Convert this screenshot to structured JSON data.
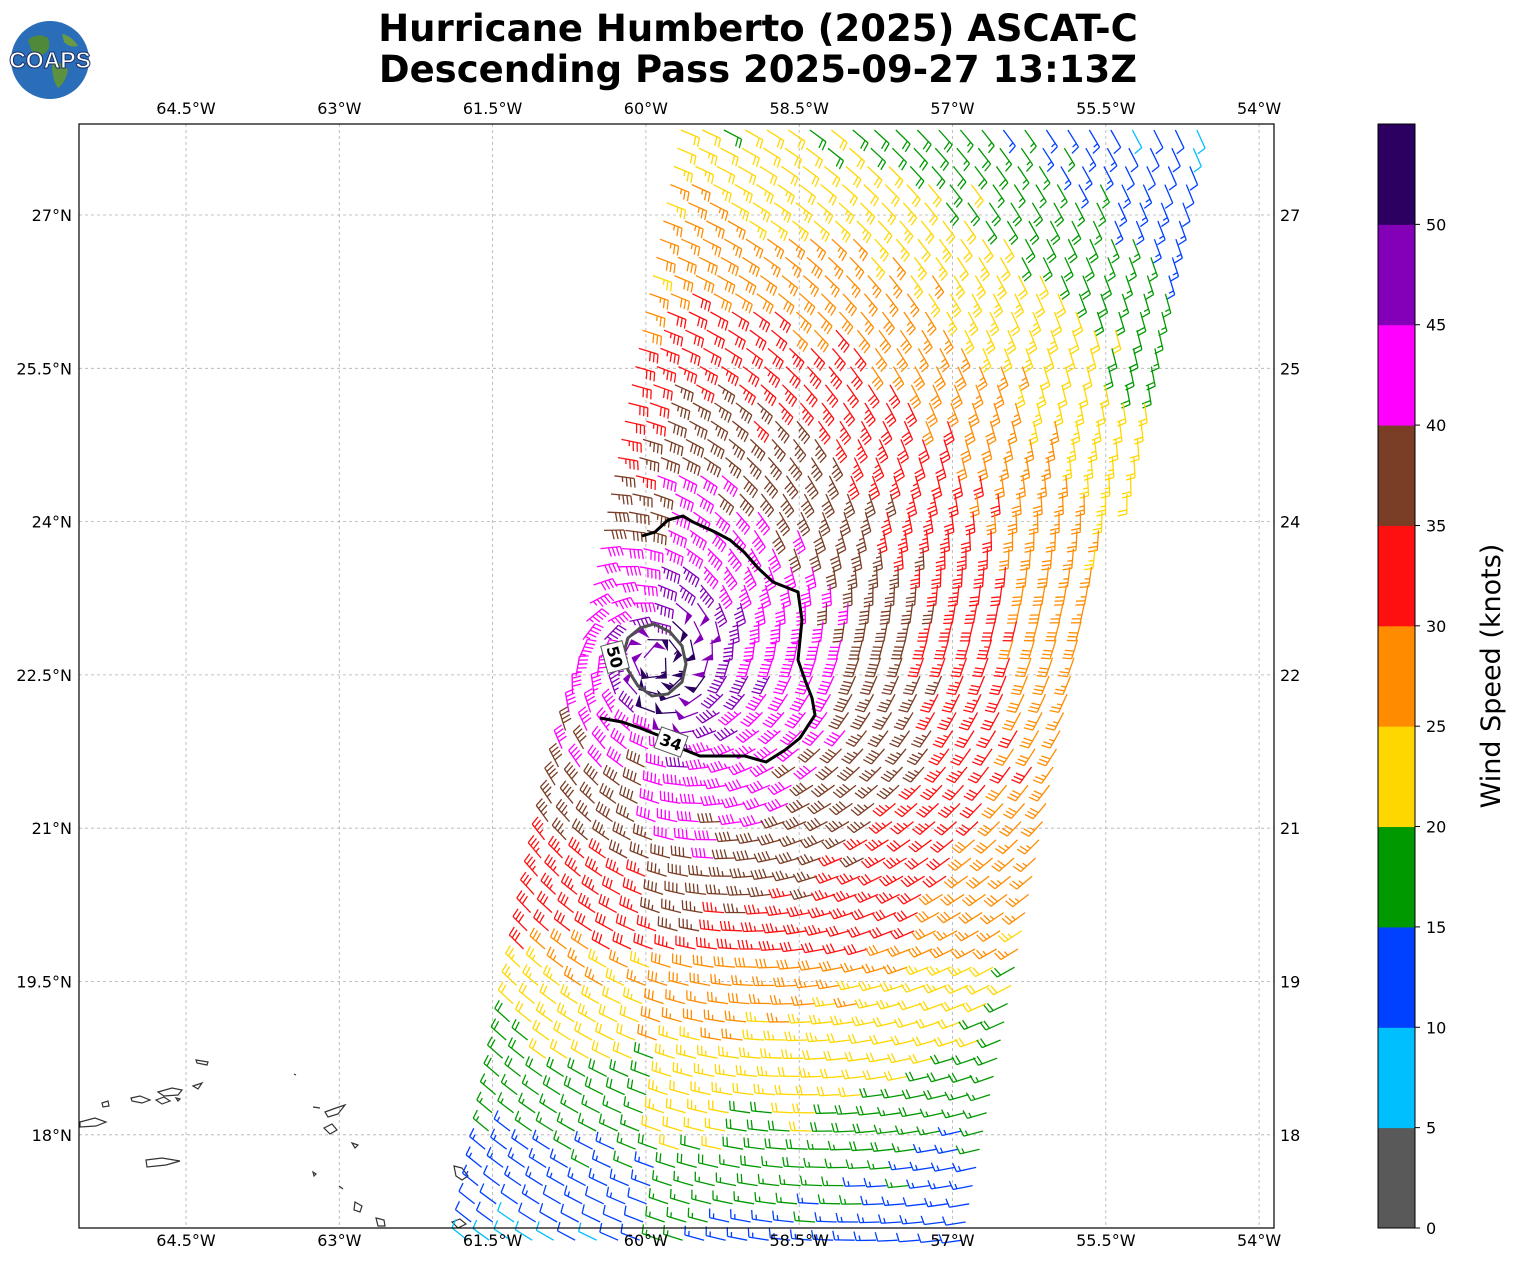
{
  "title": {
    "line1": "Hurricane Humberto (2025) ASCAT-C",
    "line2": "Descending Pass 2025-09-27 13:13Z"
  },
  "logo": {
    "text": "COAPS"
  },
  "map": {
    "lon_ticks": [
      "64.5°W",
      "63°W",
      "61.5°W",
      "60°W",
      "58.5°W",
      "57°W",
      "55.5°W",
      "54°W"
    ],
    "lat_ticks": [
      "27°N",
      "25.5°N",
      "24°N",
      "22.5°N",
      "21°N",
      "19.5°N",
      "18°N"
    ],
    "contour_labels": [
      "50",
      "34"
    ]
  },
  "colorbar": {
    "label": "Wind Speed (knots)",
    "ticks": [
      "0",
      "5",
      "10",
      "15",
      "20",
      "25",
      "30",
      "35",
      "40",
      "45",
      "50"
    ],
    "colors": [
      "#595959",
      "#00bfff",
      "#0040ff",
      "#009900",
      "#ffd700",
      "#ff8c00",
      "#ff1010",
      "#7a3d25",
      "#ff00ff",
      "#8400b8",
      "#2b0060"
    ]
  },
  "legend_colors": {
    "contour_34": "#000000",
    "contour_50": "#505050"
  }
}
